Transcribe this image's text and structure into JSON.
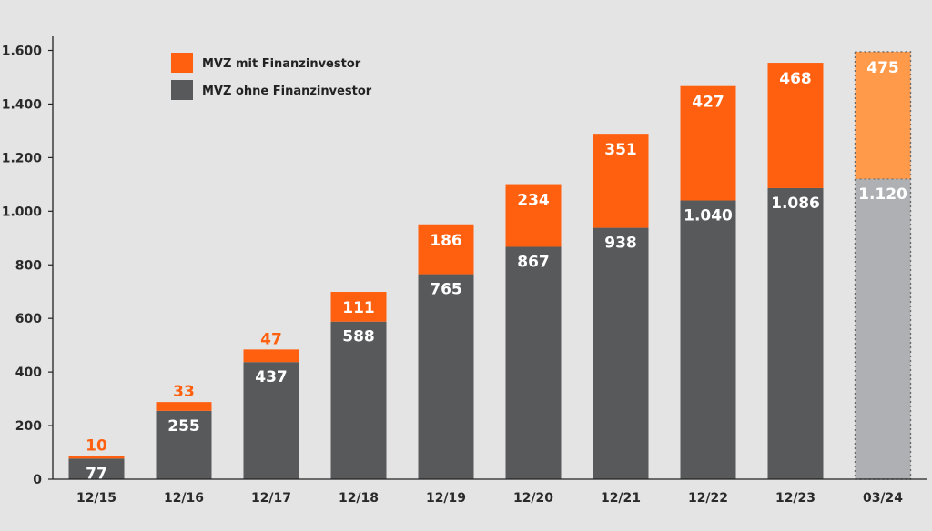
{
  "chart_data": {
    "type": "bar",
    "stacked": true,
    "categories": [
      "12/15",
      "12/16",
      "12/17",
      "12/18",
      "12/19",
      "12/20",
      "12/21",
      "12/22",
      "12/23",
      "03/24"
    ],
    "series": [
      {
        "name": "MVZ ohne Finanzinvestor",
        "values": [
          77,
          255,
          437,
          588,
          765,
          867,
          938,
          1040,
          1086,
          1120
        ],
        "labels": [
          "77",
          "255",
          "437",
          "588",
          "765",
          "867",
          "938",
          "1.040",
          "1.086",
          "1.120"
        ],
        "color": "#58595b",
        "highlight_color": "#aeb0b3"
      },
      {
        "name": "MVZ mit Finanzinvestor",
        "values": [
          10,
          33,
          47,
          111,
          186,
          234,
          351,
          427,
          468,
          475
        ],
        "labels": [
          "10",
          "33",
          "47",
          "111",
          "186",
          "234",
          "351",
          "427",
          "468",
          "475"
        ],
        "color": "#ff6010",
        "highlight_color": "#ff9a4a"
      }
    ],
    "highlighted_category": "03/24",
    "yticks": [
      0,
      200,
      400,
      600,
      800,
      1000,
      1200,
      1400,
      1600
    ],
    "ytick_labels": [
      "0",
      "200",
      "400",
      "600",
      "800",
      "1.000",
      "1.200",
      "1.400",
      "1.600"
    ],
    "ylim": [
      0,
      1700
    ],
    "title": "",
    "xlabel": "",
    "ylabel": "",
    "grid": false,
    "legend_position": "top-left"
  },
  "colors": {
    "background": "#e4e4e4",
    "axis": "#222222",
    "label_on_bar": "#ffffff",
    "label_small_top": "#ff6010"
  }
}
